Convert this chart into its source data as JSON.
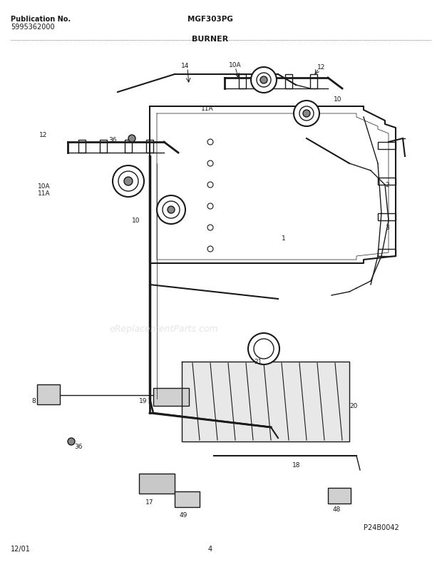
{
  "title_model": "MGF303PG",
  "title_section": "BURNER",
  "pub_no_label": "Publication No.",
  "pub_no": "5995362000",
  "page_code": "P24B0042",
  "date": "12/01",
  "page_num": "4",
  "watermark": "eReplacementParts.com",
  "bg_color": "#ffffff",
  "line_color": "#1a1a1a",
  "text_color": "#1a1a1a",
  "watermark_color": "#cccccc",
  "fig_width": 6.2,
  "fig_height": 8.03,
  "dpi": 100
}
